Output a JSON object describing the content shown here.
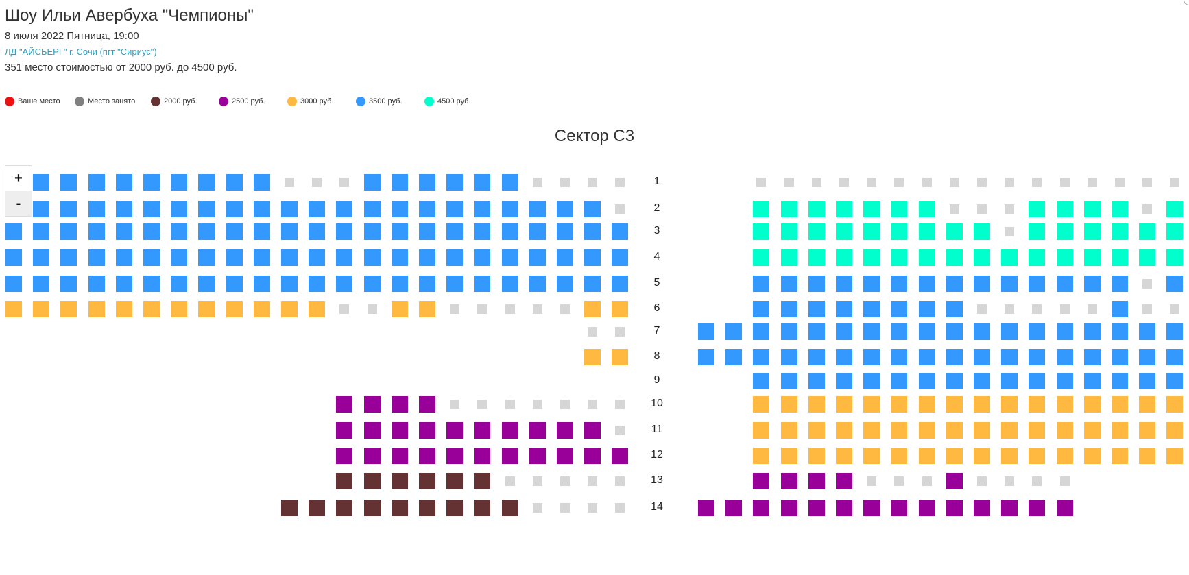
{
  "event": {
    "title": "Шоу Ильи Авербуха \"Чемпионы\"",
    "date": "8 июля 2022 Пятница, 19:00",
    "venue": "ЛД \"АЙСБЕРГ\" г. Сочи (пгт \"Сириус\")",
    "summary": "351 место стоимостью от 2000 руб. до 4500 руб."
  },
  "legend": [
    {
      "label": "Ваше место",
      "color": "#ee1111"
    },
    {
      "label": "Место занято",
      "color": "#808080"
    },
    {
      "label": "2000 руб.",
      "color": "#643232"
    },
    {
      "label": "2500 руб.",
      "color": "#990099"
    },
    {
      "label": "3000 руб.",
      "color": "#ffb840"
    },
    {
      "label": "3500 руб.",
      "color": "#3399ff"
    },
    {
      "label": "4500 руб.",
      "color": "#00ffcc"
    }
  ],
  "sector": {
    "title": "Сектор С3"
  },
  "zoom": {
    "plus": "+",
    "minus": "-"
  },
  "rows": [
    "1",
    "2",
    "3",
    "4",
    "5",
    "6",
    "7",
    "8",
    "9",
    "10",
    "11",
    "12",
    "13",
    "14"
  ],
  "seat_colors": {
    "B": "#3399ff",
    "T": "#00ffcc",
    "O": "#ffb840",
    "P": "#990099",
    "R": "#643232",
    "G": "#d6d6d6"
  },
  "seat_legend": {
    "B": "3500 руб.",
    "T": "4500 руб.",
    "O": "3000 руб.",
    "P": "2500 руб.",
    "R": "2000 руб.",
    "G": "Место занято"
  },
  "seat_map": {
    "left": [
      "_BBBBBBBBBGGGBBBBBBGGGG",
      "_BBBBBBBBBBBBBBBBBBBBBG",
      "BBBBBBBBBBBBBBBBBBBBBBB",
      "BBBBBBBBBBBBBBBBBBBBBBB",
      "BBBBBBBBBBBBBBBBBBBBBBB",
      "OOOOOOOOOOOOGGOOGGGGGOO",
      "_____________________GG",
      "_____________________OO",
      "_______________________",
      "____________PPPPGGGGGGG",
      "____________PPPPPPPPPPG",
      "____________PPPPPPPPPPP",
      "____________RRRRRRGGGGG",
      "__________RRRRRRRRRGGGG"
    ],
    "right": [
      "__GGGGGGGGGGGGGGGG",
      "__TTTTTTTGGGTTTTGT",
      "__TTTTTTTTTGTTTTTT",
      "__TTTTTTTTTTTTTTTT",
      "__BBBBBBBBBBBBBBGB",
      "__BBBBBBBBGGGGGBGG",
      "BBBBBBBBBBBBBBBBBB",
      "BBBBBBBBBBBBBBBBBB",
      "__BBBBBBBBBBBBBBBB",
      "__OOOOOOOOOOOOOOOO",
      "__OOOOOOOOOOOOOOOO",
      "__OOOOOOOOOOOOOOOO",
      "__PPPPGGGPGGGG____",
      "PPPPPPPPPPPPPP____"
    ]
  }
}
